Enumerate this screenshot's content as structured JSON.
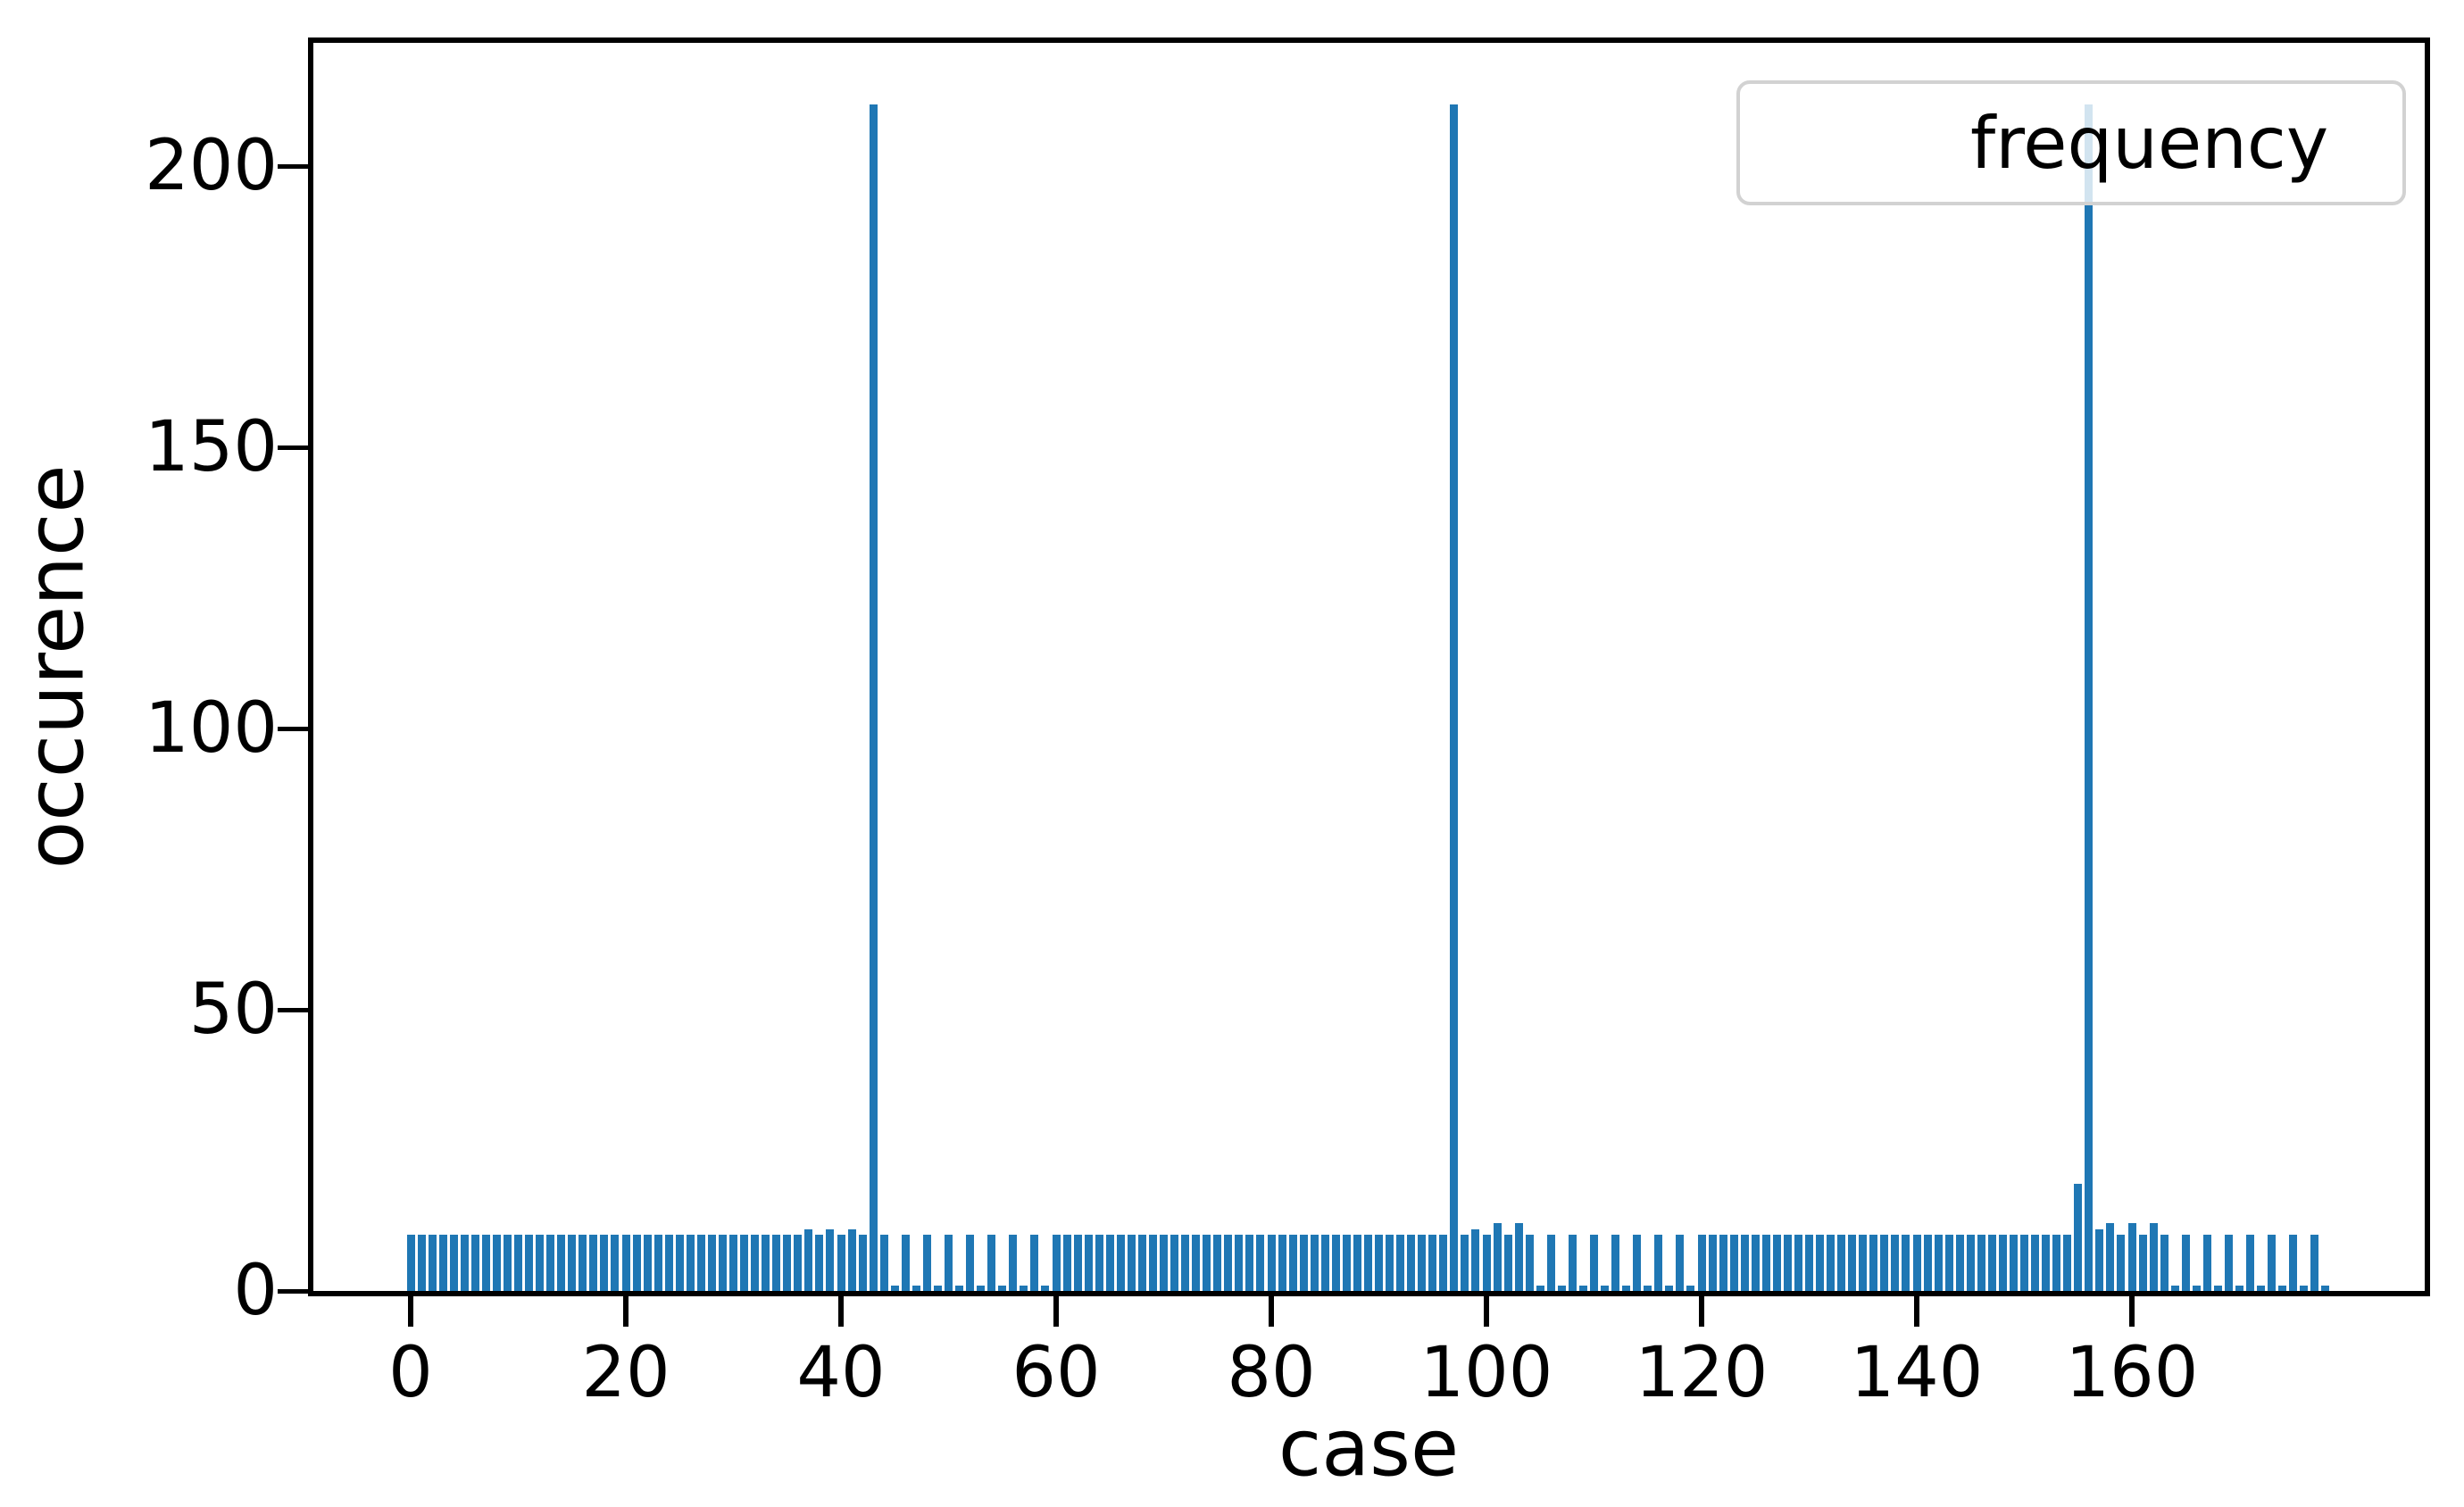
{
  "figure": {
    "background": "#ffffff"
  },
  "chart_data": {
    "type": "bar",
    "title": "",
    "xlabel": "case",
    "ylabel": "occurence",
    "legend": {
      "label": "frequency",
      "position": "upper right",
      "frame_alpha": 0.8
    },
    "bar_color": "#1f77b4",
    "grid": false,
    "x_ticks": [
      0,
      20,
      40,
      60,
      80,
      100,
      120,
      140,
      160
    ],
    "y_ticks": [
      0,
      50,
      100,
      150,
      200
    ],
    "xlim": [
      -9.5,
      187.5
    ],
    "ylim": [
      0,
      222
    ],
    "x_start": 0,
    "x_step": 1,
    "values": [
      10,
      10,
      10,
      10,
      10,
      10,
      10,
      10,
      10,
      10,
      10,
      10,
      10,
      10,
      10,
      10,
      10,
      10,
      10,
      10,
      10,
      10,
      10,
      10,
      10,
      10,
      10,
      10,
      10,
      10,
      10,
      10,
      10,
      10,
      10,
      10,
      10,
      11,
      10,
      11,
      10,
      11,
      10,
      211,
      10,
      1,
      10,
      1,
      10,
      1,
      10,
      1,
      10,
      1,
      10,
      1,
      10,
      1,
      10,
      1,
      10,
      10,
      10,
      10,
      10,
      10,
      10,
      10,
      10,
      10,
      10,
      10,
      10,
      10,
      10,
      10,
      10,
      10,
      10,
      10,
      10,
      10,
      10,
      10,
      10,
      10,
      10,
      10,
      10,
      10,
      10,
      10,
      10,
      10,
      10,
      10,
      10,
      211,
      10,
      11,
      10,
      12,
      10,
      12,
      10,
      1,
      10,
      1,
      10,
      1,
      10,
      1,
      10,
      1,
      10,
      1,
      10,
      1,
      10,
      1,
      10,
      10,
      10,
      10,
      10,
      10,
      10,
      10,
      10,
      10,
      10,
      10,
      10,
      10,
      10,
      10,
      10,
      10,
      10,
      10,
      10,
      10,
      10,
      10,
      10,
      10,
      10,
      10,
      10,
      10,
      10,
      10,
      10,
      10,
      10,
      19,
      211,
      11,
      12,
      10,
      12,
      10,
      12,
      10,
      1,
      10,
      1,
      10,
      1,
      10,
      1,
      10,
      1,
      10,
      1,
      10,
      1,
      10,
      1
    ],
    "notable_points": [
      {
        "x": 43,
        "y": 211
      },
      {
        "x": 97,
        "y": 211
      },
      {
        "x": 155,
        "y": 19
      },
      {
        "x": 156,
        "y": 211
      }
    ]
  }
}
